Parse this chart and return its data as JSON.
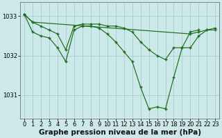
{
  "xlabel": "Graphe pression niveau de la mer (hPa)",
  "bg_color": "#cce8e8",
  "grid_color": "#99cccc",
  "line_color": "#1a6b1a",
  "hours": [
    0,
    1,
    2,
    3,
    4,
    5,
    6,
    7,
    8,
    9,
    10,
    11,
    12,
    13,
    14,
    15,
    16,
    17,
    18,
    19,
    20,
    21,
    22,
    23
  ],
  "line1": [
    1033.05,
    1032.85,
    null,
    null,
    null,
    null,
    null,
    null,
    null,
    null,
    null,
    null,
    null,
    null,
    null,
    null,
    null,
    null,
    null,
    null,
    1032.55,
    1032.6,
    1032.65,
    1032.7
  ],
  "line2": [
    1033.05,
    1032.85,
    1032.75,
    1032.65,
    1032.55,
    1032.15,
    1032.75,
    1032.8,
    1032.8,
    1032.8,
    1032.75,
    1032.75,
    1032.7,
    1032.6,
    1032.35,
    1032.15,
    1032.0,
    1031.9,
    1032.2,
    1032.2,
    1032.6,
    1032.65,
    null,
    null
  ],
  "line3": [
    1033.05,
    1032.6,
    1032.5,
    1032.45,
    1032.2,
    1031.85,
    1032.65,
    1032.75,
    1032.75,
    1032.7,
    1032.55,
    1032.35,
    1032.1,
    1031.85,
    1031.2,
    1030.65,
    1030.7,
    1030.65,
    1031.45,
    1032.2,
    1032.2,
    1032.5,
    1032.65,
    1032.65
  ],
  "ylim": [
    1030.4,
    1033.35
  ],
  "yticks": [
    1031,
    1032,
    1033
  ],
  "xticks": [
    0,
    1,
    2,
    3,
    4,
    5,
    6,
    7,
    8,
    9,
    10,
    11,
    12,
    13,
    14,
    15,
    16,
    17,
    18,
    19,
    20,
    21,
    22,
    23
  ],
  "xlabel_fontsize": 7.5,
  "tick_fontsize": 6.0
}
